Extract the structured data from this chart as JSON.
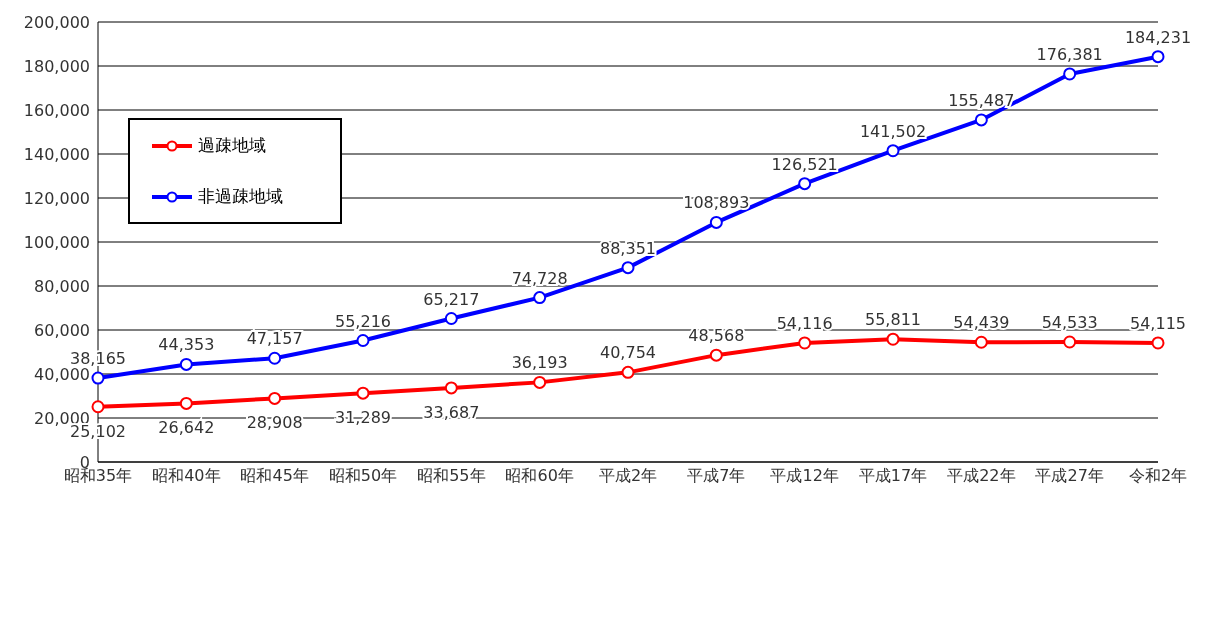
{
  "chart_data": {
    "type": "line",
    "categories": [
      "昭和35年",
      "昭和40年",
      "昭和45年",
      "昭和50年",
      "昭和55年",
      "昭和60年",
      "平成2年",
      "平成7年",
      "平成12年",
      "平成17年",
      "平成22年",
      "平成27年",
      "令和2年"
    ],
    "series": [
      {
        "name": "過疎地域",
        "color": "#ff0000",
        "values": [
          25102,
          26642,
          28908,
          31289,
          33687,
          36193,
          40754,
          48568,
          54116,
          55811,
          54439,
          54533,
          54115
        ],
        "value_labels": [
          "25,102",
          "26,642",
          "28,908",
          "31,289",
          "33,687",
          "36,193",
          "40,754",
          "48,568",
          "54,116",
          "55,811",
          "54,439",
          "54,533",
          "54,115"
        ]
      },
      {
        "name": "非過疎地域",
        "color": "#0000ff",
        "values": [
          38165,
          44353,
          47157,
          55216,
          65217,
          74728,
          88351,
          108893,
          126521,
          141502,
          155487,
          176381,
          184231
        ],
        "value_labels": [
          "38,165",
          "44,353",
          "47,157",
          "55,216",
          "65,217",
          "74,728",
          "88,351",
          "108,893",
          "126,521",
          "141,502",
          "155,487",
          "176,381",
          "184,231"
        ]
      }
    ],
    "ylim": [
      0,
      200000
    ],
    "yticks": [
      {
        "value": 0,
        "label": "0"
      },
      {
        "value": 20000,
        "label": "20,000"
      },
      {
        "value": 40000,
        "label": "40,000"
      },
      {
        "value": 60000,
        "label": "60,000"
      },
      {
        "value": 80000,
        "label": "80,000"
      },
      {
        "value": 100000,
        "label": "100,000"
      },
      {
        "value": 120000,
        "label": "120,000"
      },
      {
        "value": 140000,
        "label": "140,000"
      },
      {
        "value": 160000,
        "label": "160,000"
      },
      {
        "value": 180000,
        "label": "180,000"
      },
      {
        "value": 200000,
        "label": "200,000"
      }
    ],
    "grid": "y",
    "legend": "top left",
    "marker": "circle",
    "line_style": "solid"
  }
}
